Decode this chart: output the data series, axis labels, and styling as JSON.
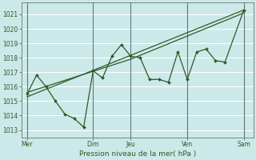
{
  "bg_color": "#cce9e9",
  "grid_color": "#aacccc",
  "line_color": "#2d5a27",
  "xlabel": "Pression niveau de la mer( hPa )",
  "ylim": [
    1012.5,
    1021.8
  ],
  "yticks": [
    1013,
    1014,
    1015,
    1016,
    1017,
    1018,
    1019,
    1020,
    1021
  ],
  "xtick_labels": [
    "Mer",
    "Dim",
    "Jeu",
    "Ven",
    "Sam"
  ],
  "xtick_positions": [
    0,
    3.5,
    5.5,
    8.5,
    11.5
  ],
  "vline_positions": [
    0,
    3.5,
    5.5,
    8.5,
    11.5
  ],
  "data_x": [
    0,
    0.5,
    1.0,
    1.5,
    2.0,
    2.5,
    3.0,
    3.5,
    4.0,
    4.5,
    5.0,
    5.5,
    6.0,
    6.5,
    7.0,
    7.5,
    8.0,
    8.5,
    9.0,
    9.5,
    10.0,
    10.5,
    11.5
  ],
  "data_y": [
    1015.5,
    1016.8,
    1016.0,
    1015.0,
    1014.1,
    1013.8,
    1013.2,
    1017.1,
    1016.6,
    1018.1,
    1018.9,
    1018.1,
    1018.0,
    1016.5,
    1016.5,
    1016.3,
    1018.4,
    1016.5,
    1018.4,
    1018.6,
    1017.8,
    1017.7,
    1021.3
  ],
  "line1_x": [
    0,
    11.5
  ],
  "line1_y": [
    1015.3,
    1021.3
  ],
  "line2_x": [
    0,
    5.5,
    11.5
  ],
  "line2_y": [
    1015.6,
    1017.9,
    1021.1
  ],
  "xlim": [
    -0.3,
    12.0
  ],
  "xlabel_fontsize": 6.5,
  "tick_fontsize": 5.5
}
